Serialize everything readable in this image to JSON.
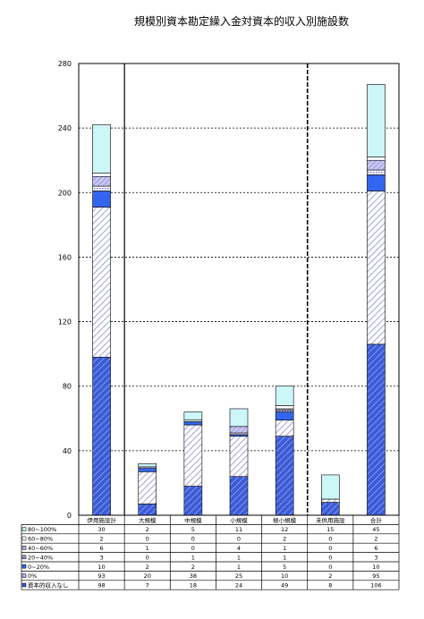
{
  "chart_data": {
    "type": "bar",
    "stacked": true,
    "title": "規模別資本勘定繰入金対資本的収入別施設数",
    "categories": [
      "伊用施設計",
      "大規模",
      "中規模",
      "小規模",
      "極小規模",
      "未供用施設",
      "合計"
    ],
    "yticks": [
      "0",
      "40",
      "80",
      "120",
      "160",
      "200",
      "240",
      "280"
    ],
    "ylim": [
      0,
      280
    ],
    "grid": true,
    "legend": "table-left",
    "series": [
      {
        "name": "資本的収入なし",
        "values": [
          98,
          7,
          18,
          24,
          49,
          8,
          106
        ],
        "labels": [
          "98",
          "7",
          "18",
          "24",
          "49",
          "8",
          "106"
        ]
      },
      {
        "name": "0%",
        "values": [
          93,
          20,
          38,
          25,
          10,
          2,
          95
        ],
        "labels": [
          "93",
          "20",
          "38",
          "25",
          "10",
          "2",
          "95"
        ]
      },
      {
        "name": "0~20%",
        "values": [
          10,
          2,
          2,
          1,
          5,
          0,
          10
        ],
        "labels": [
          "10",
          "2",
          "2",
          "1",
          "5",
          "0",
          "10"
        ]
      },
      {
        "name": "20~40%",
        "values": [
          3,
          0,
          1,
          1,
          1,
          0,
          3
        ],
        "labels": [
          "3",
          "0",
          "1",
          "1",
          "1",
          "0",
          "3"
        ]
      },
      {
        "name": "40~60%",
        "values": [
          6,
          1,
          0,
          4,
          1,
          0,
          6
        ],
        "labels": [
          "6",
          "1",
          "0",
          "4",
          "1",
          "0",
          "6"
        ]
      },
      {
        "name": "60~80%",
        "values": [
          2,
          0,
          0,
          0,
          2,
          0,
          2
        ],
        "labels": [
          "2",
          "0",
          "0",
          "0",
          "2",
          "0",
          "2"
        ]
      },
      {
        "name": "80~100%",
        "values": [
          30,
          2,
          5,
          11,
          12,
          15,
          45
        ],
        "labels": [
          "30",
          "2",
          "5",
          "11",
          "12",
          "15",
          "45"
        ]
      }
    ]
  }
}
